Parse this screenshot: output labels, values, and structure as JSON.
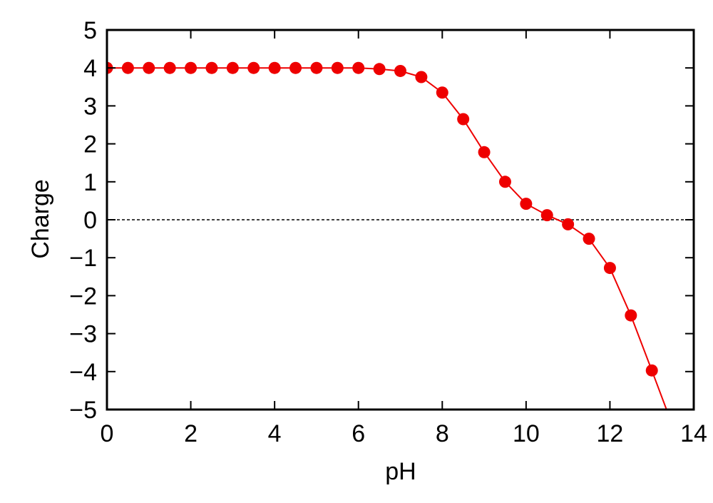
{
  "chart_data": {
    "type": "line",
    "title": "",
    "xlabel": "pH",
    "ylabel": "Charge",
    "xlim": [
      0,
      14
    ],
    "ylim": [
      -5,
      5
    ],
    "grid": false,
    "legend": "none",
    "x_ticks": [
      0,
      2,
      4,
      6,
      8,
      10,
      12,
      14
    ],
    "y_ticks": [
      5,
      4,
      3,
      2,
      1,
      0,
      -1,
      -2,
      -3,
      -4,
      -5
    ],
    "x_tick_labels": [
      "0",
      "2",
      "4",
      "6",
      "8",
      "10",
      "12",
      "14"
    ],
    "y_tick_labels": [
      "5",
      "4",
      "3",
      "2",
      "1",
      "0",
      "−1",
      "−2",
      "−3",
      "−4",
      "−5"
    ],
    "series": [
      {
        "color": "#ee0000",
        "marker": "circle",
        "x": [
          0,
          0.5,
          1,
          1.5,
          2,
          2.5,
          3,
          3.5,
          4,
          4.5,
          5,
          5.5,
          6,
          6.5,
          7,
          7.5,
          8,
          8.5,
          9,
          9.5,
          10,
          10.5,
          11,
          11.5,
          12,
          12.5,
          13
        ],
        "y": [
          4,
          4,
          4,
          4,
          4,
          4,
          4,
          4,
          4,
          4,
          4,
          4,
          4,
          3.97,
          3.92,
          3.76,
          3.35,
          2.65,
          1.78,
          1.0,
          0.42,
          0.12,
          -0.12,
          -0.5,
          -1.27,
          -2.52,
          -3.97
        ]
      }
    ],
    "line_extension": {
      "x": 13.35,
      "y": -5
    },
    "reference_lines": [
      {
        "y": 0,
        "style": "dashed",
        "color": "#000000"
      }
    ]
  }
}
